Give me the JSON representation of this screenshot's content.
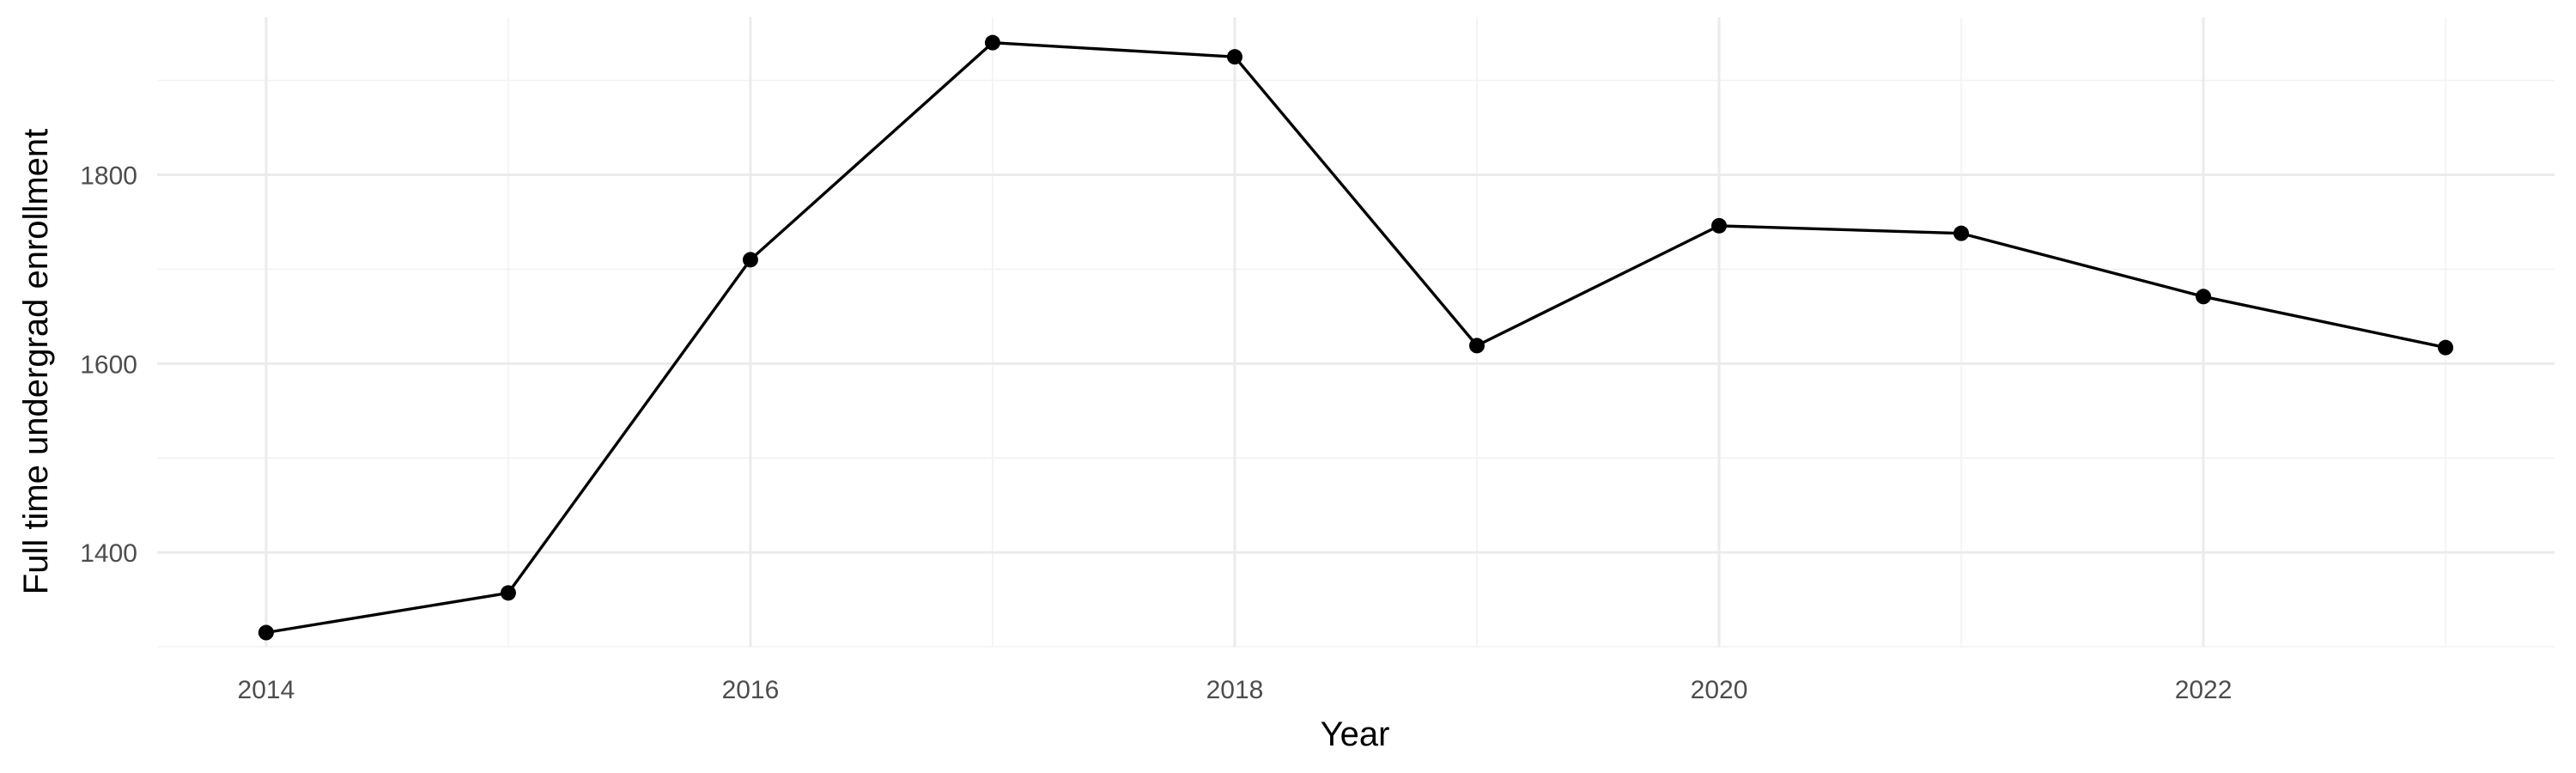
{
  "chart_data": {
    "type": "line",
    "title": "",
    "xlabel": "Year",
    "ylabel": "Full time undergrad enrollment",
    "x": [
      2014,
      2015,
      2016,
      2017,
      2018,
      2019,
      2020,
      2021,
      2022,
      2023
    ],
    "series": [
      {
        "values": [
          1315,
          1357,
          1710,
          1940,
          1925,
          1619,
          1746,
          1738,
          1671,
          1617
        ]
      }
    ],
    "xlim": [
      2013.55,
      2023.45
    ],
    "ylim": [
      1300,
      1967
    ],
    "x_ticks": [
      2014,
      2016,
      2018,
      2020,
      2022
    ],
    "x_tick_labels": [
      "2014",
      "2016",
      "2018",
      "2020",
      "2022"
    ],
    "y_ticks": [
      1400,
      1600,
      1800
    ],
    "y_tick_labels": [
      "1400",
      "1600",
      "1800"
    ],
    "grid": true,
    "legend": "none",
    "line_color": "#000000",
    "grid_color": "#ebebeb"
  }
}
